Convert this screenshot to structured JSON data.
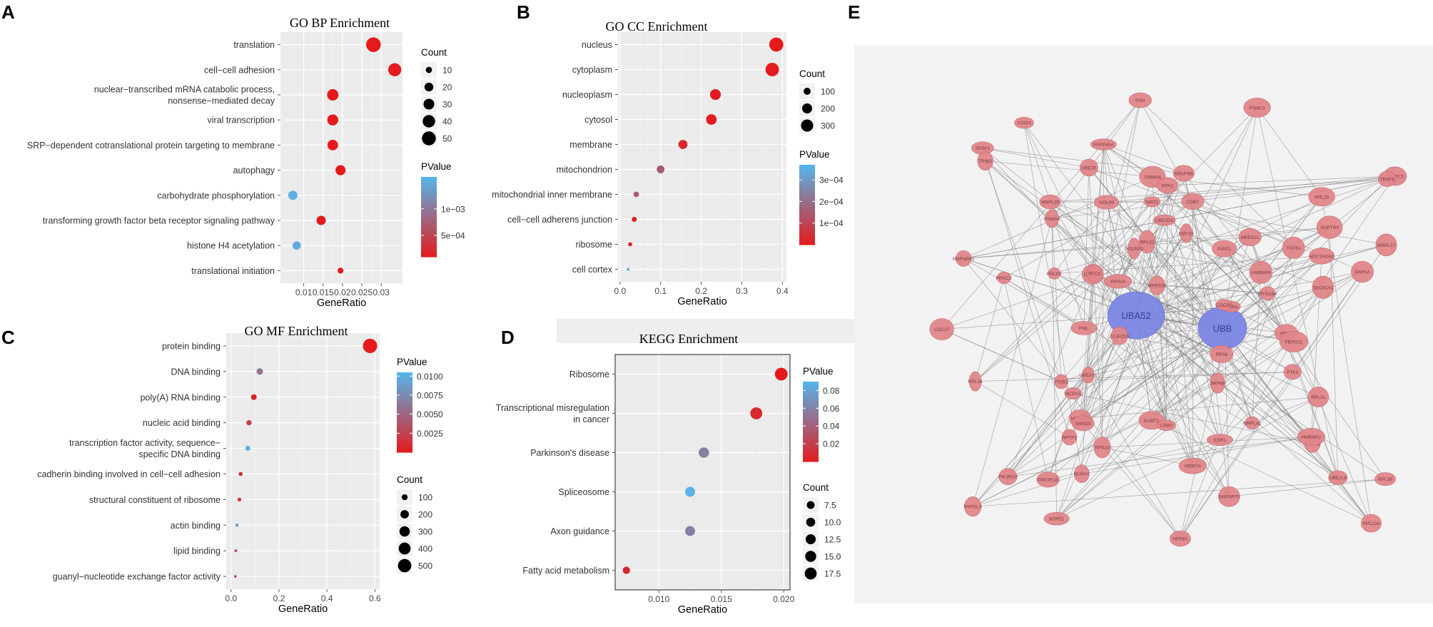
{
  "panel_labels": [
    "A",
    "B",
    "C",
    "D",
    "E"
  ],
  "chart_data": [
    {
      "id": "A",
      "type": "scatter",
      "title": "GO BP Enrichment",
      "xlabel": "GeneRatio",
      "ylabel": "",
      "categories": [
        [
          "translation"
        ],
        [
          "cell−cell adhesion"
        ],
        [
          "nuclear−transcribed mRNA catabolic process,",
          "nonsense−mediated decay"
        ],
        [
          "viral transcription"
        ],
        [
          "SRP−dependent cotranslational protein targeting to membrane"
        ],
        [
          "autophagy"
        ],
        [
          "carbohydrate phosphorylation"
        ],
        [
          "transforming growth factor beta receptor signaling pathway"
        ],
        [
          "histone H4 acetylation"
        ],
        [
          "translational initiation"
        ]
      ],
      "x": [
        0.028,
        0.0335,
        0.0175,
        0.0175,
        0.0175,
        0.0195,
        0.0072,
        0.0145,
        0.0082,
        0.0195
      ],
      "count": [
        50,
        40,
        30,
        28,
        26,
        24,
        20,
        20,
        16,
        8
      ],
      "pvalue": [
        0.0001,
        0.0001,
        0.0001,
        0.0001,
        0.0001,
        0.0001,
        0.00155,
        0.0001,
        0.0015,
        0.0001
      ],
      "xlim": [
        0.004,
        0.0355
      ],
      "xticks": [
        0.01,
        0.015,
        0.02,
        0.025,
        0.03
      ],
      "xticklabels": [
        "0.01",
        "0.015",
        "0.02",
        "0.025",
        "0.03"
      ],
      "count_legend": {
        "title": "Count",
        "values": [
          10,
          20,
          30,
          40,
          50
        ],
        "labels": [
          "10",
          "20",
          "30",
          "40",
          "50"
        ]
      },
      "color_legend": {
        "title": "PValue",
        "range": [
          0.0001,
          0.0016
        ],
        "ticks": [
          0.001,
          0.0005
        ],
        "labels": [
          "1e−03",
          "5e−04"
        ]
      },
      "legend_order": "count-first"
    },
    {
      "id": "B",
      "type": "scatter",
      "title": "GO CC Enrichment",
      "xlabel": "GeneRatio",
      "ylabel": "",
      "categories": [
        [
          "nucleus"
        ],
        [
          "cytoplasm"
        ],
        [
          "nucleoplasm"
        ],
        [
          "cytosol"
        ],
        [
          "membrane"
        ],
        [
          "mitochondrion"
        ],
        [
          "mitochondrial inner membrane"
        ],
        [
          "cell−cell adherens junction"
        ],
        [
          "ribosome"
        ],
        [
          "cell cortex"
        ]
      ],
      "x": [
        0.385,
        0.375,
        0.235,
        0.225,
        0.155,
        0.1,
        0.04,
        0.035,
        0.025,
        0.02
      ],
      "count": [
        360,
        330,
        210,
        200,
        150,
        110,
        55,
        45,
        30,
        15
      ],
      "pvalue": [
        0.0,
        0.0,
        0.0,
        0.0,
        3e-05,
        0.00015,
        0.00015,
        0.0,
        3e-05,
        0.00035
      ],
      "xlim": [
        -0.005,
        0.41
      ],
      "xticks": [
        0,
        0.1,
        0.2,
        0.3,
        0.4
      ],
      "xticklabels": [
        "0.0",
        "0.1",
        "0.2",
        "0.3",
        "0.4"
      ],
      "count_legend": {
        "title": "Count",
        "values": [
          100,
          200,
          300
        ],
        "labels": [
          "100",
          "200",
          "300"
        ]
      },
      "color_legend": {
        "title": "PValue",
        "range": [
          0.0,
          0.00037
        ],
        "ticks": [
          0.0003,
          0.0002,
          0.0001
        ],
        "labels": [
          "3e−04",
          "2e−04",
          "1e−04"
        ]
      },
      "legend_order": "count-first"
    },
    {
      "id": "C",
      "type": "scatter",
      "title": "GO MF Enrichment",
      "xlabel": "GeneRatio",
      "ylabel": "",
      "categories": [
        [
          "protein binding"
        ],
        [
          "DNA binding"
        ],
        [
          "poly(A) RNA binding"
        ],
        [
          "nucleic acid binding"
        ],
        [
          "transcription factor activity, sequence−",
          "specific DNA binding"
        ],
        [
          "cadherin binding involved in cell−cell adhesion"
        ],
        [
          "structural constituent of ribosome"
        ],
        [
          "actin binding"
        ],
        [
          "lipid binding"
        ],
        [
          "guanyl−nucleotide exchange factor activity"
        ]
      ],
      "x": [
        0.58,
        0.12,
        0.095,
        0.075,
        0.07,
        0.04,
        0.035,
        0.025,
        0.02,
        0.018
      ],
      "count": [
        520,
        105,
        85,
        70,
        65,
        40,
        35,
        25,
        20,
        15
      ],
      "pvalue": [
        0.0,
        0.006,
        0.0008,
        0.0025,
        0.0102,
        0.0008,
        0.0012,
        0.0085,
        0.0025,
        0.0025
      ],
      "xlim": [
        -0.02,
        0.62
      ],
      "xticks": [
        0,
        0.2,
        0.4,
        0.6
      ],
      "xticklabels": [
        "0.0",
        "0.2",
        "0.4",
        "0.6"
      ],
      "count_legend": {
        "title": "Count",
        "values": [
          100,
          200,
          300,
          400,
          500
        ],
        "labels": [
          "100",
          "200",
          "300",
          "400",
          "500"
        ]
      },
      "color_legend": {
        "title": "PValue",
        "range": [
          0.0,
          0.0105
        ],
        "ticks": [
          0.01,
          0.0075,
          0.005,
          0.0025
        ],
        "labels": [
          "0.0100",
          "0.0075",
          "0.0050",
          "0.0025"
        ]
      },
      "legend_order": "color-first"
    },
    {
      "id": "D",
      "type": "scatter",
      "title": "KEGG Enrichment",
      "xlabel": "GeneRatio",
      "ylabel": "",
      "categories": [
        [
          "Ribosome"
        ],
        [
          "Transcriptional misregulation",
          "in cancer"
        ],
        [
          "Parkinson's disease"
        ],
        [
          "Spliceosome"
        ],
        [
          "Axon guidance"
        ],
        [
          "Fatty acid metabolism"
        ]
      ],
      "x": [
        0.0198,
        0.0178,
        0.0136,
        0.0125,
        0.0125,
        0.0074
      ],
      "count": [
        18,
        16,
        12,
        11,
        11,
        6
      ],
      "pvalue": [
        0.0,
        0.008,
        0.06,
        0.088,
        0.06,
        0.008
      ],
      "xlim": [
        0.0065,
        0.0205
      ],
      "xticks": [
        0.01,
        0.015,
        0.02
      ],
      "xticklabels": [
        "0.010",
        "0.015",
        "0.020"
      ],
      "count_legend": {
        "title": "Count",
        "values": [
          7.5,
          10,
          12.5,
          15,
          17.5
        ],
        "labels": [
          "7.5",
          "10.0",
          "12.5",
          "15.0",
          "17.5"
        ]
      },
      "color_legend": {
        "title": "PValue",
        "range": [
          0.0,
          0.09
        ],
        "ticks": [
          0.08,
          0.06,
          0.04,
          0.02
        ],
        "labels": [
          "0.08",
          "0.06",
          "0.04",
          "0.02"
        ]
      },
      "legend_order": "color-first"
    }
  ],
  "network": {
    "nodes": [
      {
        "id": "UBA52",
        "label": "UBA52",
        "type": "hub"
      },
      {
        "id": "UBB",
        "label": "UBB",
        "type": "hub"
      },
      {
        "label": "SUMT1"
      },
      {
        "label": "TIMM44"
      },
      {
        "label": "BSPD1"
      },
      {
        "label": "NDUFB8"
      },
      {
        "label": "UBE35"
      },
      {
        "label": "PIAS1"
      },
      {
        "label": "PIK3R1A"
      },
      {
        "label": "MRPS36"
      },
      {
        "label": "NOL99"
      },
      {
        "label": "POOR3"
      },
      {
        "label": "MRPL27"
      },
      {
        "label": "MRPL35"
      },
      {
        "label": "MRPS18"
      },
      {
        "label": "MRPS21"
      },
      {
        "label": "MRPL41"
      },
      {
        "label": "ITGB1"
      },
      {
        "label": "RAP1A"
      },
      {
        "label": "PXN"
      },
      {
        "label": "PTK2"
      },
      {
        "label": "PRKCZ"
      },
      {
        "label": "UBE2V1"
      },
      {
        "label": "UBR4"
      },
      {
        "label": "SMAD3"
      },
      {
        "label": "STAT3"
      },
      {
        "label": "PML"
      },
      {
        "label": "NCOA1"
      },
      {
        "label": "NPTP1"
      },
      {
        "label": "NUAA1"
      },
      {
        "label": "DYNLL1"
      },
      {
        "label": "HIST1H2AC"
      },
      {
        "label": "RPL29"
      },
      {
        "label": "PSMA4"
      },
      {
        "label": "CDC27"
      },
      {
        "label": "SEC61A1"
      },
      {
        "label": "RPL32"
      },
      {
        "label": "RPLP0"
      },
      {
        "label": "RPS15"
      },
      {
        "label": "PSMC3"
      },
      {
        "label": "RPL38"
      },
      {
        "label": "RPL31"
      },
      {
        "label": "SRP68"
      },
      {
        "label": "RPS8"
      },
      {
        "label": "RPS24"
      },
      {
        "label": "RPL18"
      },
      {
        "label": "RPL22A"
      },
      {
        "label": "PABPC1"
      },
      {
        "label": "EEF1D"
      },
      {
        "label": "FBXO11"
      },
      {
        "label": "RPS6"
      },
      {
        "label": "RFC4"
      },
      {
        "label": "RPA2"
      },
      {
        "label": "POLR2D"
      },
      {
        "label": "HNRNPR"
      },
      {
        "label": "PAPOLA"
      },
      {
        "label": "HNRNPC"
      },
      {
        "label": "SRSF2"
      },
      {
        "label": "HNRNPA1"
      },
      {
        "label": "LSM3"
      },
      {
        "label": "SNRNP70"
      },
      {
        "label": "PRPF40A"
      },
      {
        "label": "ZC3H11A"
      },
      {
        "label": "UBE2L6"
      },
      {
        "label": "CDC20"
      },
      {
        "label": "TRAF6"
      },
      {
        "label": "CDB2"
      },
      {
        "label": "NFKB1"
      },
      {
        "label": "TGFB1"
      },
      {
        "label": "WDR74"
      },
      {
        "label": "SUPT6H"
      },
      {
        "label": "PPP2R1B"
      },
      {
        "label": "UBE2D3"
      },
      {
        "label": "SIRT1"
      },
      {
        "label": "ESR1"
      },
      {
        "label": "TRIM2"
      },
      {
        "label": "MYO18A"
      }
    ]
  }
}
